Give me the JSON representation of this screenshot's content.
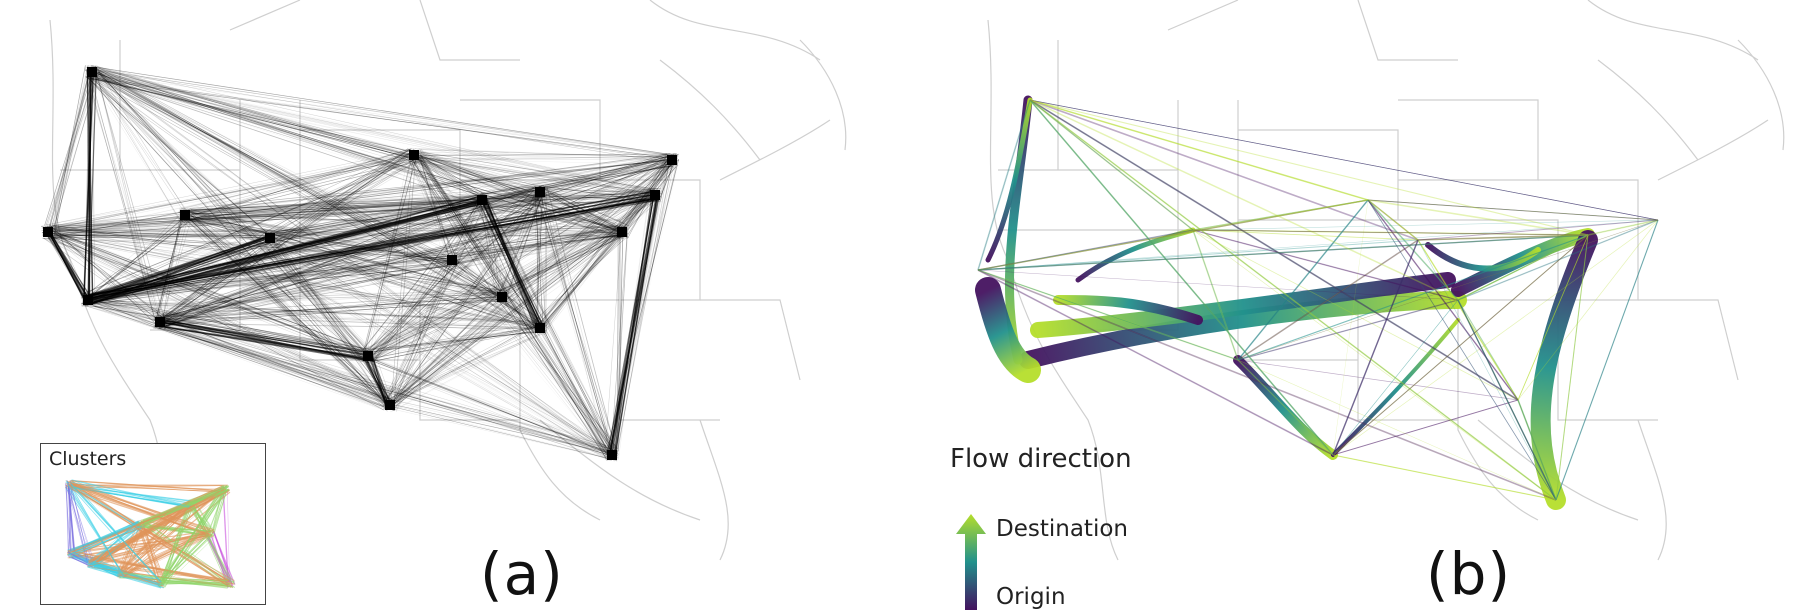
{
  "panels": {
    "a": {
      "label": "(a)",
      "inset_title": "Clusters"
    },
    "b": {
      "label": "(b)",
      "legend": {
        "title": "Flow direction",
        "destination": "Destination",
        "origin": "Origin",
        "colors": {
          "origin": "#44125f",
          "middle": "#21918c",
          "destination": "#b5de2b"
        }
      }
    }
  },
  "colors": {
    "map_lines": "#cfcfcf",
    "edge_black": "#000000",
    "cluster_palette": [
      "#7b6fe0",
      "#3fd0e6",
      "#e0945a",
      "#8fd66a",
      "#c850dc"
    ]
  }
}
